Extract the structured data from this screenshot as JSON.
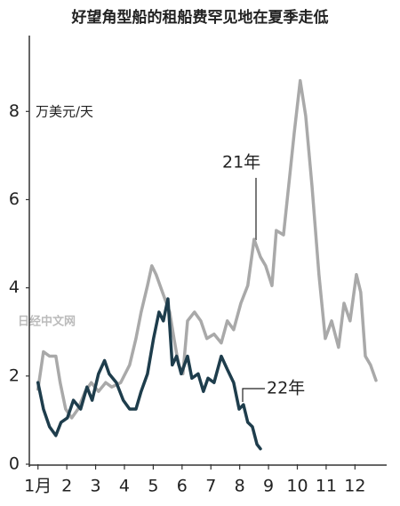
{
  "chart_data": {
    "type": "line",
    "title": "好望角型船的租船费罕见地在夏季走低",
    "y_label": "万美元/天",
    "watermark": "日经中文网",
    "xlim": [
      0.7,
      13.1
    ],
    "xticks": [
      {
        "value": 1,
        "label": "1月"
      },
      2,
      3,
      4,
      5,
      6,
      7,
      8,
      9,
      10,
      11,
      12
    ],
    "ylim": [
      0,
      9.7
    ],
    "yticks": [
      0,
      2,
      4,
      6,
      8
    ],
    "series": [
      {
        "name": "21年",
        "color": "#a9a9a9",
        "x": [
          1.0,
          1.19,
          1.4,
          1.62,
          1.77,
          1.96,
          2.17,
          2.39,
          2.64,
          2.85,
          3.1,
          3.35,
          3.56,
          3.87,
          4.18,
          4.4,
          4.58,
          4.8,
          4.95,
          5.1,
          5.32,
          5.57,
          5.72,
          5.88,
          6.03,
          6.19,
          6.43,
          6.65,
          6.86,
          7.11,
          7.36,
          7.57,
          7.79,
          8.04,
          8.28,
          8.5,
          8.72,
          8.9,
          9.12,
          9.27,
          9.52,
          9.73,
          9.89,
          10.1,
          10.29,
          10.51,
          10.75,
          10.97,
          11.19,
          11.43,
          11.62,
          11.83,
          12.05,
          12.2,
          12.36,
          12.54,
          12.73
        ],
        "values": [
          1.7,
          2.55,
          2.45,
          2.45,
          1.85,
          1.25,
          1.05,
          1.25,
          1.65,
          1.85,
          1.65,
          1.85,
          1.75,
          1.85,
          2.25,
          2.85,
          3.45,
          4.05,
          4.5,
          4.3,
          3.9,
          3.45,
          2.85,
          2.25,
          2.05,
          3.25,
          3.45,
          3.25,
          2.85,
          2.95,
          2.75,
          3.25,
          3.05,
          3.65,
          4.05,
          5.1,
          4.7,
          4.5,
          4.05,
          5.3,
          5.2,
          6.5,
          7.5,
          8.7,
          7.9,
          6.3,
          4.3,
          2.85,
          3.25,
          2.65,
          3.65,
          3.25,
          4.3,
          3.9,
          2.45,
          2.25,
          1.9
        ]
      },
      {
        "name": "22年",
        "color": "#1e3d4c",
        "x": [
          1.0,
          1.19,
          1.4,
          1.62,
          1.8,
          2.02,
          2.23,
          2.48,
          2.7,
          2.88,
          3.1,
          3.31,
          3.47,
          3.72,
          3.96,
          4.18,
          4.4,
          4.58,
          4.8,
          5.01,
          5.2,
          5.35,
          5.51,
          5.66,
          5.81,
          5.97,
          6.19,
          6.34,
          6.56,
          6.74,
          6.9,
          7.11,
          7.36,
          7.57,
          7.79,
          7.98,
          8.13,
          8.28,
          8.44,
          8.6,
          8.72
        ],
        "values": [
          1.85,
          1.25,
          0.85,
          0.65,
          0.95,
          1.05,
          1.45,
          1.25,
          1.75,
          1.45,
          2.05,
          2.35,
          2.05,
          1.85,
          1.45,
          1.25,
          1.25,
          1.65,
          2.05,
          2.85,
          3.45,
          3.25,
          3.75,
          2.25,
          2.45,
          2.05,
          2.45,
          1.95,
          2.05,
          1.65,
          1.95,
          1.85,
          2.45,
          2.15,
          1.85,
          1.25,
          1.35,
          0.95,
          0.85,
          0.45,
          0.35
        ]
      }
    ]
  }
}
